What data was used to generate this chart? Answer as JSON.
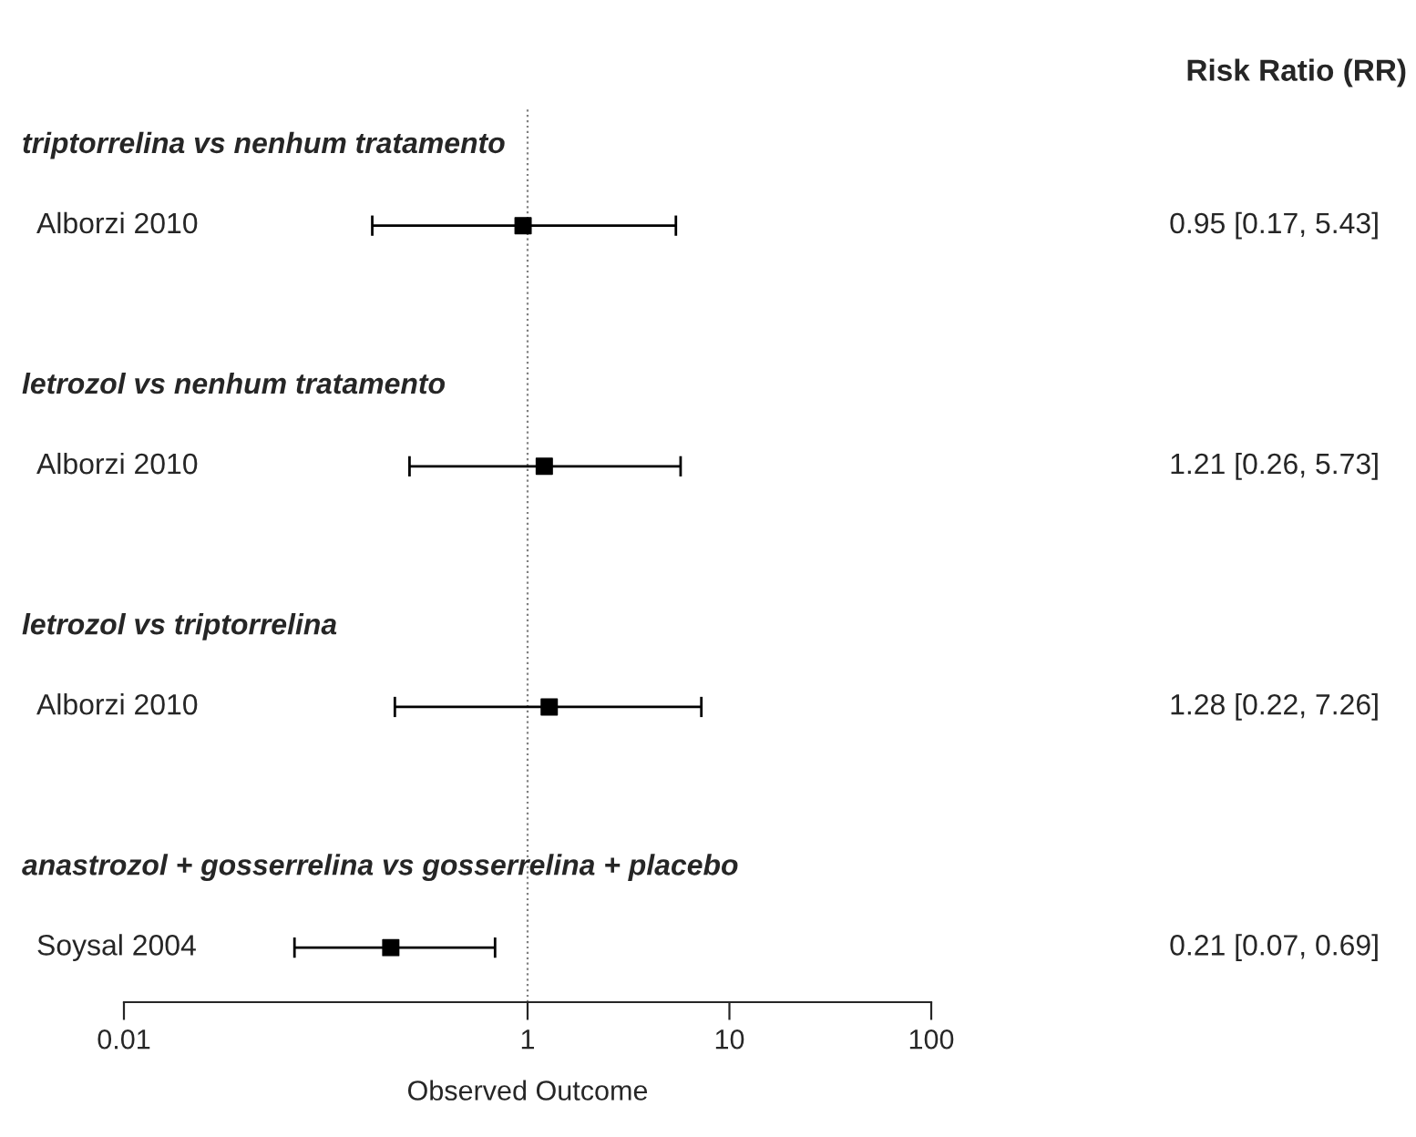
{
  "chart_data": {
    "type": "scatter",
    "orientation": "horizontal",
    "categories": [
      "triptorrelina vs nenhum tratamento",
      "Alborzi 2010",
      null,
      "letrozol vs nenhum tratamento",
      "Alborzi 2010",
      null,
      "letrozol vs triptorrelina",
      "Alborzi 2010",
      null,
      "anastrozol + gosserrelina vs gosserrelina + placebo",
      "Soysal 2004"
    ],
    "values": [
      null,
      0.95,
      null,
      null,
      1.21,
      null,
      null,
      1.28,
      null,
      null,
      0.21
    ],
    "errors": [
      null,
      [
        0.17,
        5.43
      ],
      null,
      null,
      [
        0.26,
        5.73
      ],
      null,
      null,
      [
        0.22,
        7.26
      ],
      null,
      null,
      [
        0.07,
        0.69
      ]
    ],
    "value_labels": [
      null,
      "0.95 [0.17, 5.43]",
      null,
      null,
      "1.21 [0.26, 5.73]",
      null,
      null,
      "1.28 [0.22, 7.26]",
      null,
      null,
      "0.21 [0.07, 0.69]"
    ],
    "color": "#000000",
    "xlabel": "Observed Outcome",
    "annotations": [
      "Risk Ratio (RR)"
    ],
    "log": "x",
    "xlim": [
      0.01,
      100
    ],
    "xticks": [
      0.01,
      1,
      10,
      100
    ],
    "ref_lines": [
      {
        "axis": "x",
        "value": 1,
        "line_style": "dotted",
        "color": "#808080"
      }
    ],
    "marker": "square",
    "grid": false,
    "legend": false
  }
}
